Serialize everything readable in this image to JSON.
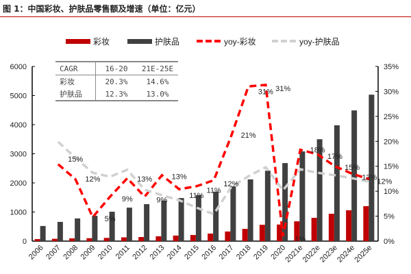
{
  "title": "图 1：中国彩妆、护肤品零售额及增速（单位：亿元）",
  "chart_data": {
    "type": "bar",
    "categories": [
      "2006",
      "2007",
      "2008",
      "2009",
      "2010",
      "2011",
      "2012",
      "2013",
      "2014",
      "2015",
      "2016",
      "2017",
      "2018",
      "2019",
      "2020",
      "2021e",
      "2022e",
      "2023e",
      "2024e",
      "2025e"
    ],
    "series": [
      {
        "name": "彩妆",
        "type": "bar",
        "axis": "left",
        "color": "#c00000",
        "values": [
          70,
          80,
          95,
          100,
          110,
          130,
          140,
          165,
          190,
          210,
          260,
          330,
          420,
          560,
          570,
          680,
          800,
          940,
          1060,
          1200
        ]
      },
      {
        "name": "护肤品",
        "type": "bar",
        "axis": "left",
        "color": "#404040",
        "values": [
          520,
          660,
          780,
          870,
          1010,
          1150,
          1270,
          1390,
          1480,
          1580,
          1700,
          1880,
          2120,
          2420,
          2680,
          3080,
          3500,
          3980,
          4490,
          5030
        ]
      },
      {
        "name": "yoy-彩妆",
        "type": "line",
        "axis": "right",
        "color": "#ff0000",
        "dash": true,
        "values": [
          null,
          15.4,
          12.4,
          4.8,
          8.9,
          12.6,
          8.9,
          13.2,
          10.4,
          11.0,
          12.2,
          21.0,
          31.0,
          31.3,
          1.0,
          18.3,
          17.4,
          15.0,
          13.5,
          12.4
        ]
      },
      {
        "name": "yoy-护肤品",
        "type": "line",
        "axis": "right",
        "color": "#d0d0d0",
        "dash": true,
        "values": [
          null,
          19.9,
          16.7,
          13.7,
          12.9,
          14.3,
          10.3,
          9.2,
          8.2,
          6.7,
          5.4,
          10.8,
          13.0,
          14.8,
          10.2,
          14.4,
          13.7,
          13.2,
          12.6,
          11.9
        ]
      }
    ],
    "left_axis": {
      "range": [
        0,
        6000
      ],
      "ticks": [
        "0",
        "1000",
        "2000",
        "3000",
        "4000",
        "5000",
        "6000"
      ]
    },
    "right_axis": {
      "range": [
        0,
        35
      ],
      "ticks": [
        "0%",
        "5%",
        "10%",
        "15%",
        "20%",
        "25%",
        "30%",
        "35%"
      ]
    },
    "annotations": [
      {
        "text": "15%",
        "category": "2008",
        "y": 16.5
      },
      {
        "text": "12%",
        "category": "2009",
        "y": 12.5
      },
      {
        "text": "5%",
        "category": "2010",
        "y": 4.5
      },
      {
        "text": "9%",
        "category": "2011",
        "y": 8.5
      },
      {
        "text": "13%",
        "category": "2012",
        "y": 12.5
      },
      {
        "text": "9%",
        "category": "2013",
        "y": 8.3
      },
      {
        "text": "13%",
        "category": "2014",
        "y": 13.0
      },
      {
        "text": "11%",
        "category": "2015",
        "y": 9.2
      },
      {
        "text": "11%",
        "category": "2016",
        "y": 10.2
      },
      {
        "text": "12%",
        "category": "2017",
        "y": 11.5
      },
      {
        "text": "21%",
        "category": "2018",
        "y": 21.3
      },
      {
        "text": "31%",
        "category": "2019",
        "y": 30.0
      },
      {
        "text": "31%",
        "category": "2020",
        "y": 30.6
      },
      {
        "text": "1%",
        "category": "2021e",
        "y": 0.5
      },
      {
        "text": "18%",
        "category": "2022e",
        "y": 18.3
      },
      {
        "text": "17%",
        "category": "2023e",
        "y": 17.0
      },
      {
        "text": "15%",
        "category": "2024e",
        "y": 14.8
      },
      {
        "text": "13%",
        "category": "2025e",
        "y": 12.8
      },
      {
        "text": "12%",
        "category": "2025e",
        "y": 12.0,
        "offset": "right"
      }
    ],
    "legend": "top",
    "grid": false
  },
  "cagr_table": {
    "headers": [
      "CAGR",
      "16-20",
      "21E-25E"
    ],
    "rows": [
      [
        "彩妆",
        "20.3%",
        "14.6%"
      ],
      [
        "护肤品",
        "12.3%",
        "13.0%"
      ]
    ]
  }
}
